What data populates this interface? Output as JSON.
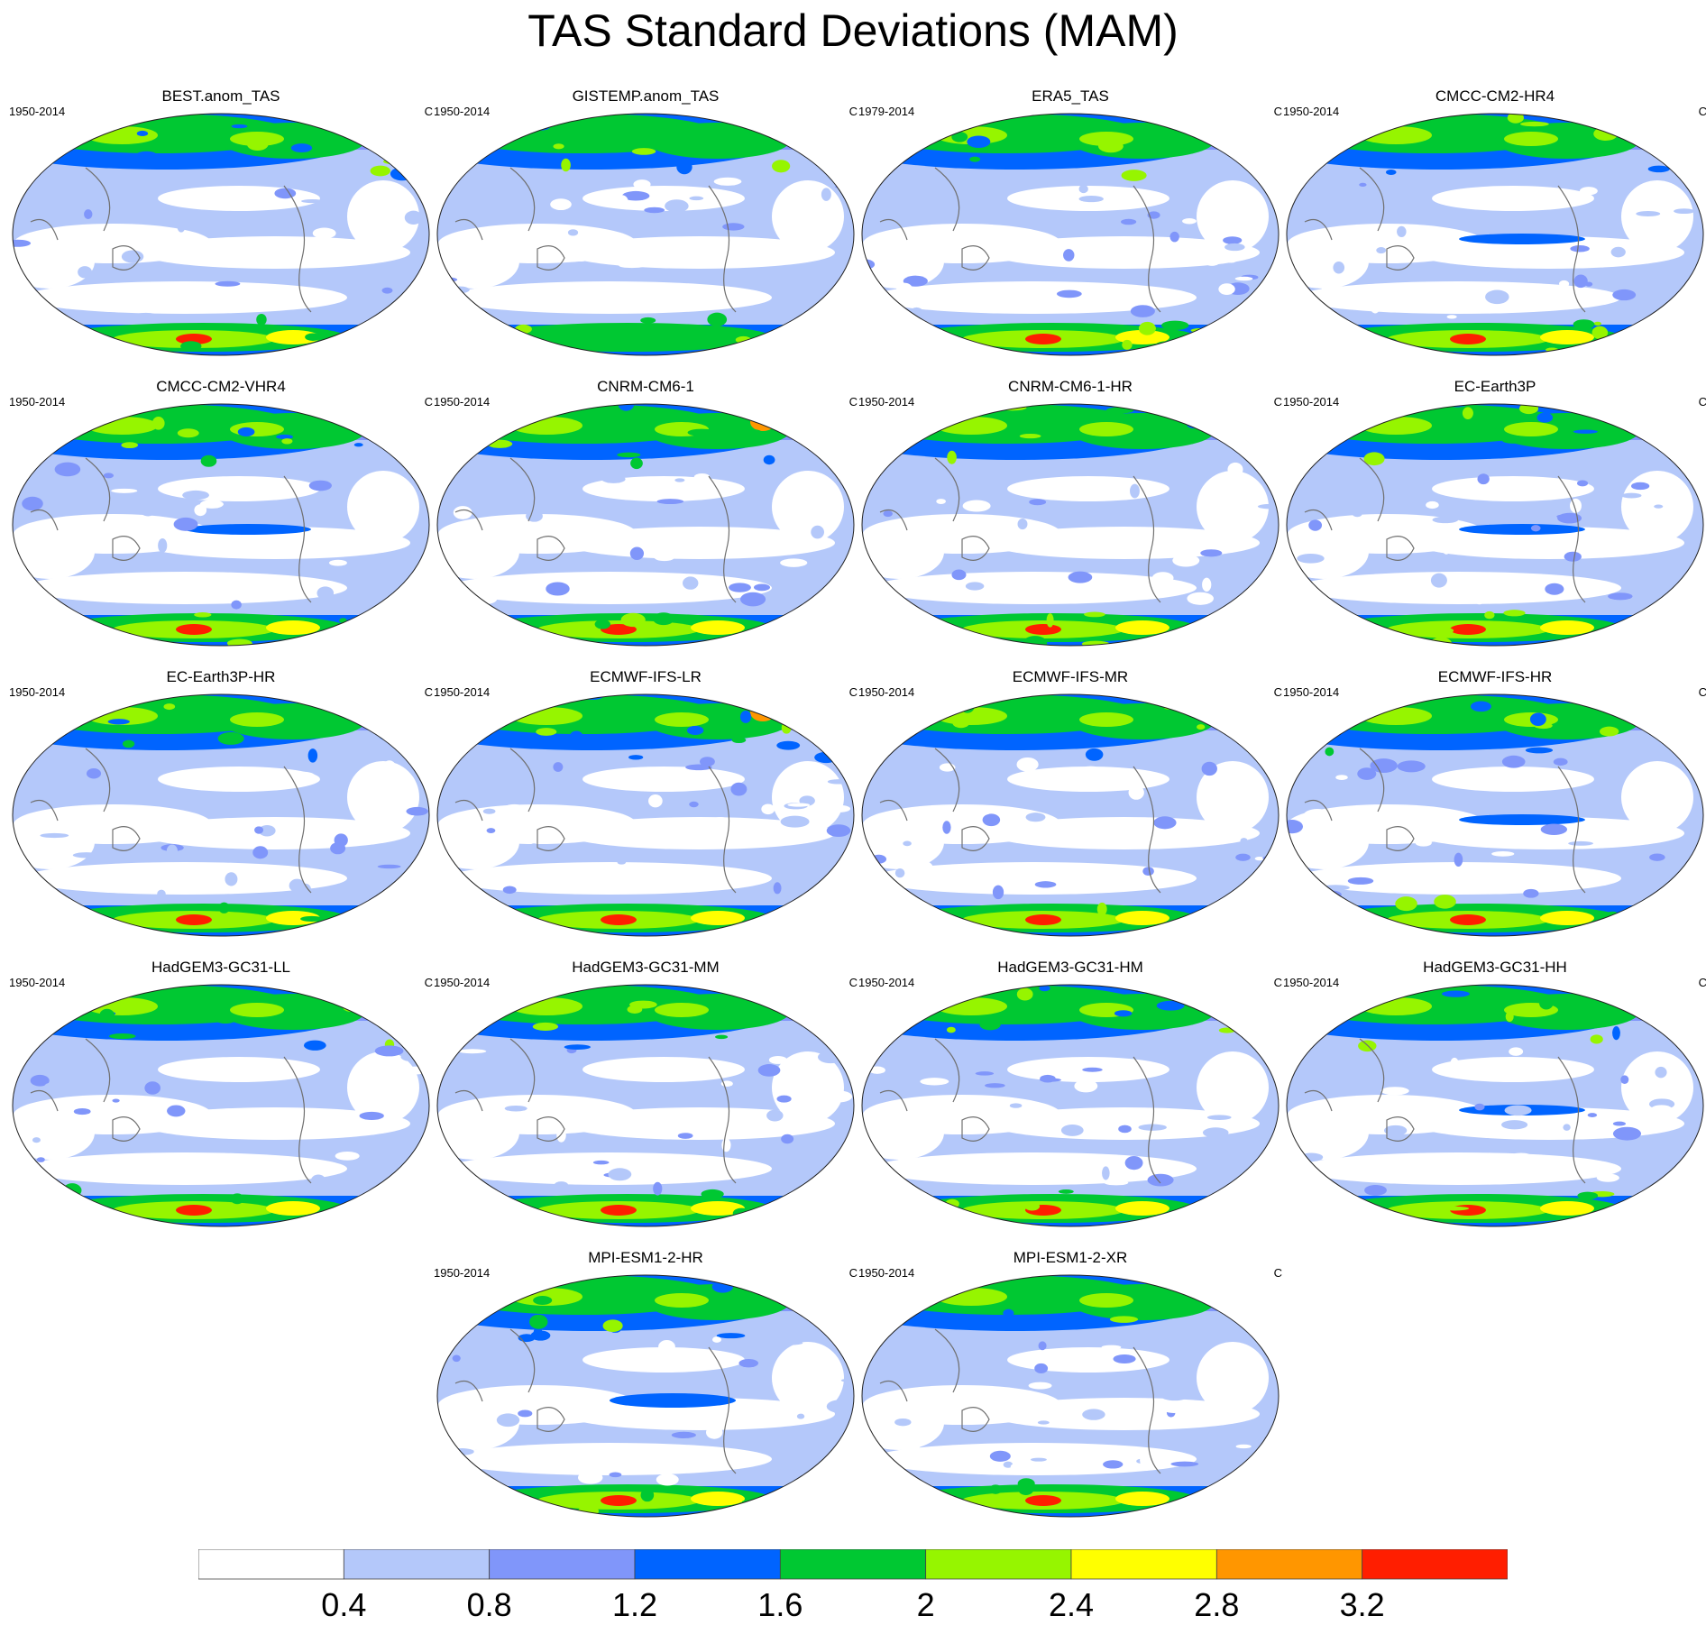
{
  "chart_data": {
    "type": "heatmap",
    "projection": "global map (Winkel-tripel style)",
    "title": "TAS Standard Deviations (MAM)",
    "units": "C",
    "colorbar": {
      "levels": [
        "0.4",
        "0.8",
        "1.2",
        "1.6",
        "2",
        "2.4",
        "2.8",
        "3.2"
      ],
      "colors": [
        "#ffffff",
        "#b4c8fa",
        "#8096fa",
        "#0064ff",
        "#00c832",
        "#96f500",
        "#ffff00",
        "#ff9600",
        "#ff1e00"
      ]
    },
    "panels": [
      {
        "name": "BEST.anom_TAS",
        "period": "1950-2014"
      },
      {
        "name": "GISTEMP.anom_TAS",
        "period": "1950-2014"
      },
      {
        "name": "ERA5_TAS",
        "period": "1979-2014"
      },
      {
        "name": "CMCC-CM2-HR4",
        "period": "1950-2014"
      },
      {
        "name": "CMCC-CM2-VHR4",
        "period": "1950-2014"
      },
      {
        "name": "CNRM-CM6-1",
        "period": "1950-2014"
      },
      {
        "name": "CNRM-CM6-1-HR",
        "period": "1950-2014"
      },
      {
        "name": "EC-Earth3P",
        "period": "1950-2014"
      },
      {
        "name": "EC-Earth3P-HR",
        "period": "1950-2014"
      },
      {
        "name": "ECMWF-IFS-LR",
        "period": "1950-2014"
      },
      {
        "name": "ECMWF-IFS-MR",
        "period": "1950-2014"
      },
      {
        "name": "ECMWF-IFS-HR",
        "period": "1950-2014"
      },
      {
        "name": "HadGEM3-GC31-LL",
        "period": "1950-2014"
      },
      {
        "name": "HadGEM3-GC31-MM",
        "period": "1950-2014"
      },
      {
        "name": "HadGEM3-GC31-HM",
        "period": "1950-2014"
      },
      {
        "name": "HadGEM3-GC31-HH",
        "period": "1950-2014"
      },
      {
        "name": "MPI-ESM1-2-HR",
        "period": "1950-2014"
      },
      {
        "name": "MPI-ESM1-2-XR",
        "period": "1950-2014"
      }
    ]
  }
}
